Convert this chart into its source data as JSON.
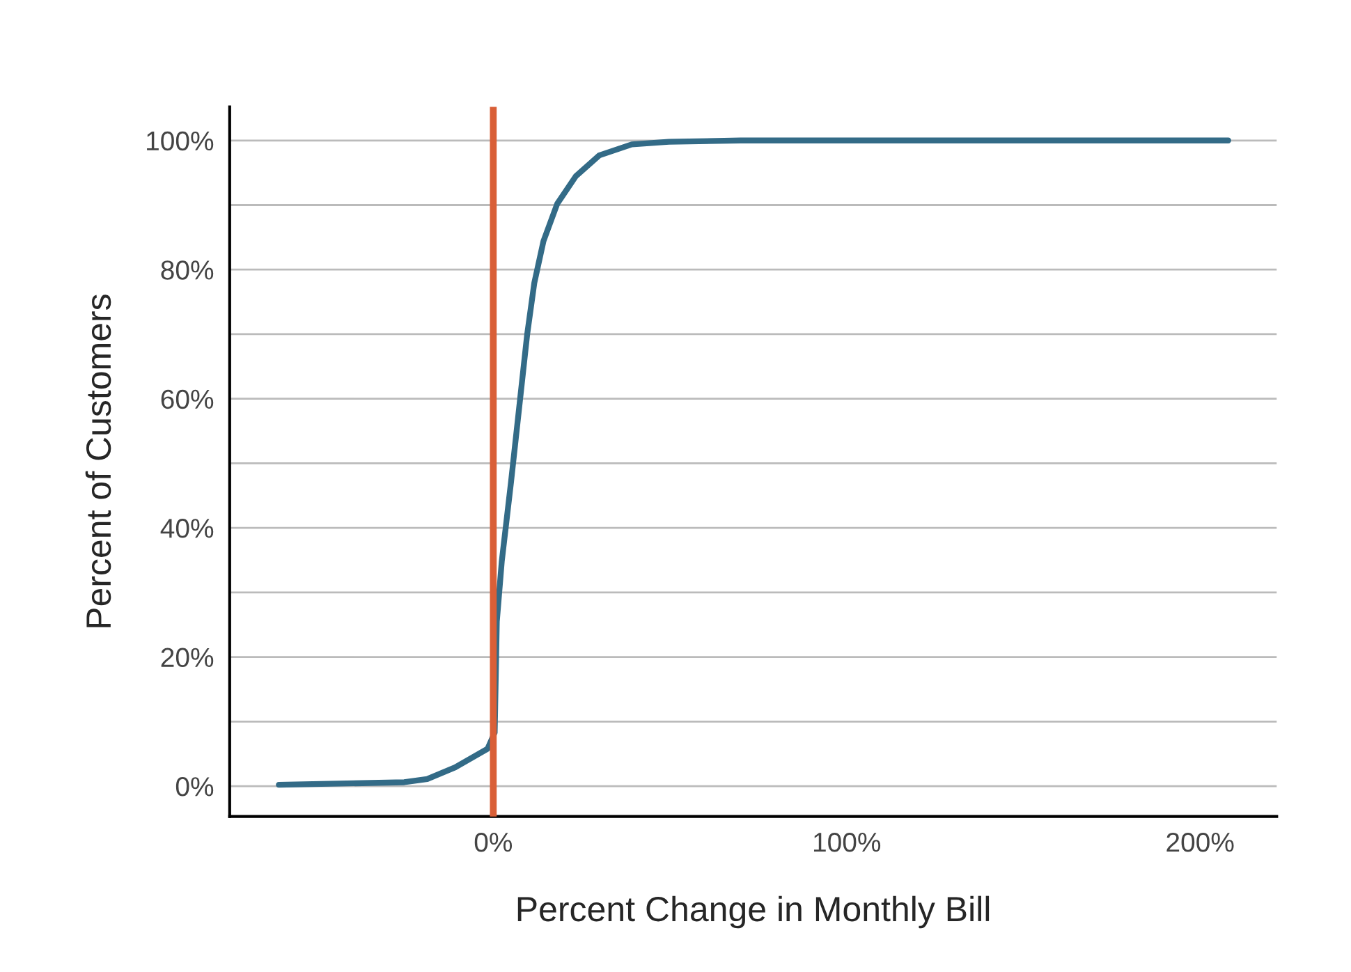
{
  "chart_data": {
    "type": "line",
    "xlabel": "Percent Change in Monthly Bill",
    "ylabel": "Percent of Customers",
    "series": [
      {
        "color": "#336b87",
        "x": [
          -60.7,
          -25.2,
          -18.7,
          -10.8,
          -1.6,
          0.4,
          1.0,
          2.4,
          5.0,
          7.6,
          9.6,
          11.6,
          14.2,
          18.1,
          23.4,
          30.0,
          39.2,
          49.7,
          70,
          150,
          208
        ],
        "values": [
          0.2,
          0.6,
          1.1,
          2.9,
          5.8,
          8.3,
          25.5,
          34.8,
          47.0,
          60.0,
          70.0,
          77.9,
          84.4,
          90.2,
          94.5,
          97.7,
          99.4,
          99.8,
          100,
          100,
          100
        ]
      }
    ],
    "xlim": [
      -74.6,
      221.7
    ],
    "ylim": [
      -4.7,
      105.2
    ],
    "xticks": [
      {
        "value": 0,
        "label": "0%"
      },
      {
        "value": 100,
        "label": "100%"
      },
      {
        "value": 200,
        "label": "200%"
      }
    ],
    "yticks": [
      {
        "value": 0,
        "label": "0%"
      },
      {
        "value": 10,
        "label": null
      },
      {
        "value": 20,
        "label": "20%"
      },
      {
        "value": 30,
        "label": null
      },
      {
        "value": 40,
        "label": "40%"
      },
      {
        "value": 50,
        "label": null
      },
      {
        "value": 60,
        "label": "60%"
      },
      {
        "value": 70,
        "label": null
      },
      {
        "value": 80,
        "label": "80%"
      },
      {
        "value": 90,
        "label": null
      },
      {
        "value": 100,
        "label": "100%"
      }
    ],
    "ref_lines": [
      {
        "axis": "x",
        "value": 0,
        "color": "#d95f37"
      }
    ],
    "grid": "y",
    "legend": false
  }
}
